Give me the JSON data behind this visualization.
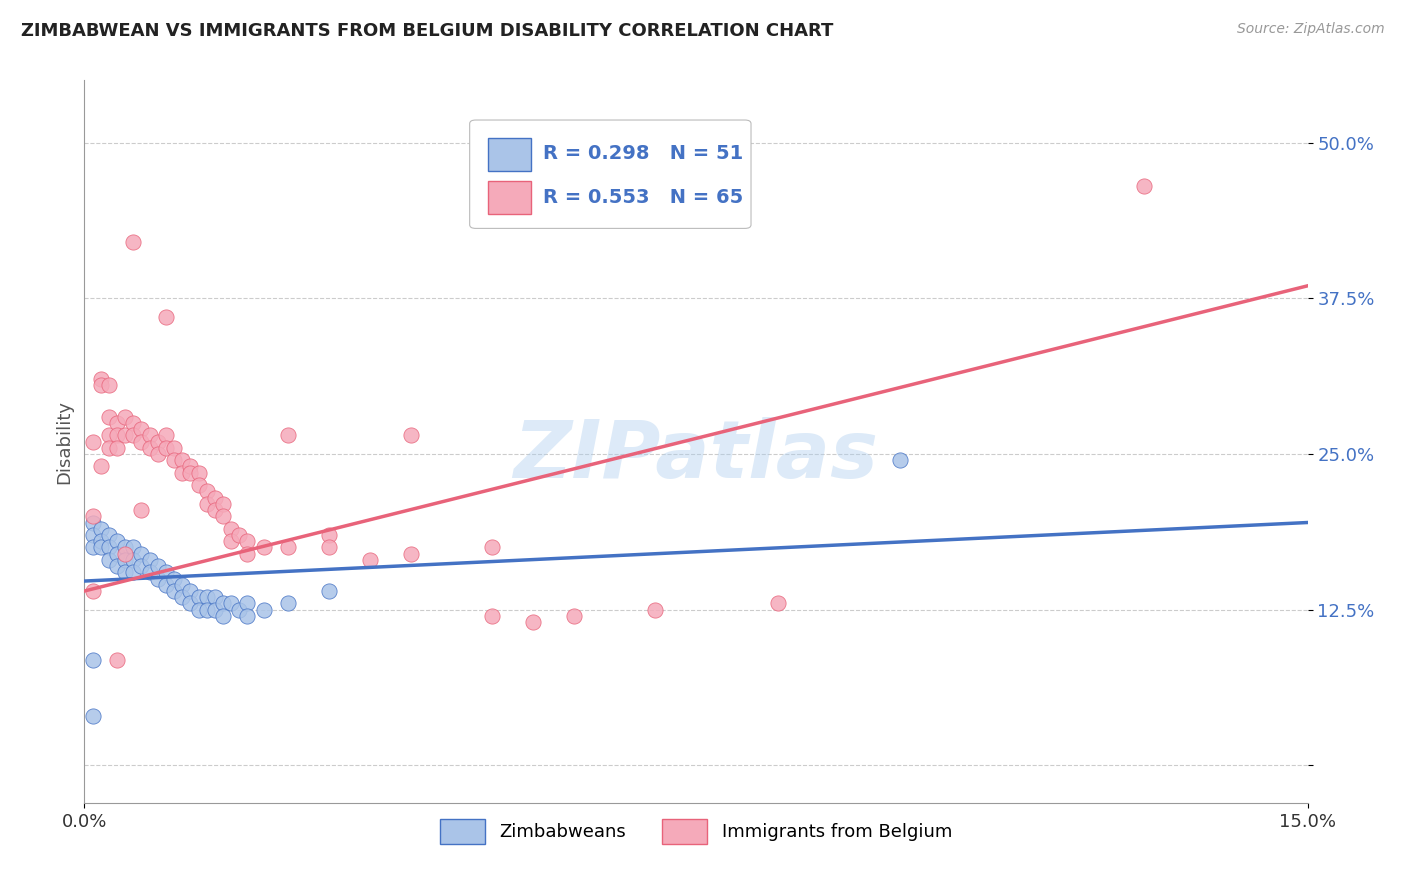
{
  "title": "ZIMBABWEAN VS IMMIGRANTS FROM BELGIUM DISABILITY CORRELATION CHART",
  "source": "Source: ZipAtlas.com",
  "ylabel": "Disability",
  "xlim": [
    0,
    0.15
  ],
  "ylim": [
    -0.03,
    0.55
  ],
  "yticks": [
    0.0,
    0.125,
    0.25,
    0.375,
    0.5
  ],
  "ytick_labels": [
    "",
    "12.5%",
    "25.0%",
    "37.5%",
    "50.0%"
  ],
  "xtick_positions": [
    0.0,
    0.15
  ],
  "xtick_labels": [
    "0.0%",
    "15.0%"
  ],
  "blue_color": "#aac4e8",
  "pink_color": "#f5aaba",
  "blue_line_color": "#4472c4",
  "pink_line_color": "#e8637a",
  "legend_text_color": "#4472c4",
  "R_blue": 0.298,
  "N_blue": 51,
  "R_pink": 0.553,
  "N_pink": 65,
  "legend1": "Zimbabweans",
  "legend2": "Immigrants from Belgium",
  "watermark": "ZIPatlas",
  "blue_scatter": [
    [
      0.001,
      0.195
    ],
    [
      0.001,
      0.185
    ],
    [
      0.001,
      0.175
    ],
    [
      0.001,
      0.04
    ],
    [
      0.002,
      0.19
    ],
    [
      0.002,
      0.18
    ],
    [
      0.002,
      0.175
    ],
    [
      0.003,
      0.185
    ],
    [
      0.003,
      0.175
    ],
    [
      0.003,
      0.165
    ],
    [
      0.004,
      0.18
    ],
    [
      0.004,
      0.17
    ],
    [
      0.004,
      0.16
    ],
    [
      0.005,
      0.175
    ],
    [
      0.005,
      0.165
    ],
    [
      0.005,
      0.155
    ],
    [
      0.006,
      0.175
    ],
    [
      0.006,
      0.165
    ],
    [
      0.006,
      0.155
    ],
    [
      0.007,
      0.17
    ],
    [
      0.007,
      0.16
    ],
    [
      0.008,
      0.165
    ],
    [
      0.008,
      0.155
    ],
    [
      0.009,
      0.16
    ],
    [
      0.009,
      0.15
    ],
    [
      0.01,
      0.155
    ],
    [
      0.01,
      0.145
    ],
    [
      0.011,
      0.15
    ],
    [
      0.011,
      0.14
    ],
    [
      0.012,
      0.145
    ],
    [
      0.012,
      0.135
    ],
    [
      0.013,
      0.14
    ],
    [
      0.013,
      0.13
    ],
    [
      0.014,
      0.135
    ],
    [
      0.014,
      0.125
    ],
    [
      0.015,
      0.135
    ],
    [
      0.015,
      0.125
    ],
    [
      0.016,
      0.135
    ],
    [
      0.016,
      0.125
    ],
    [
      0.017,
      0.13
    ],
    [
      0.017,
      0.12
    ],
    [
      0.018,
      0.13
    ],
    [
      0.019,
      0.125
    ],
    [
      0.02,
      0.13
    ],
    [
      0.02,
      0.12
    ],
    [
      0.022,
      0.125
    ],
    [
      0.025,
      0.13
    ],
    [
      0.03,
      0.14
    ],
    [
      0.1,
      0.245
    ],
    [
      0.001,
      0.085
    ]
  ],
  "pink_scatter": [
    [
      0.001,
      0.26
    ],
    [
      0.001,
      0.14
    ],
    [
      0.001,
      0.2
    ],
    [
      0.002,
      0.31
    ],
    [
      0.002,
      0.305
    ],
    [
      0.002,
      0.24
    ],
    [
      0.003,
      0.28
    ],
    [
      0.003,
      0.265
    ],
    [
      0.003,
      0.255
    ],
    [
      0.003,
      0.305
    ],
    [
      0.004,
      0.275
    ],
    [
      0.004,
      0.265
    ],
    [
      0.004,
      0.255
    ],
    [
      0.004,
      0.085
    ],
    [
      0.005,
      0.28
    ],
    [
      0.005,
      0.265
    ],
    [
      0.005,
      0.17
    ],
    [
      0.006,
      0.275
    ],
    [
      0.006,
      0.265
    ],
    [
      0.006,
      0.42
    ],
    [
      0.007,
      0.27
    ],
    [
      0.007,
      0.26
    ],
    [
      0.007,
      0.205
    ],
    [
      0.008,
      0.265
    ],
    [
      0.008,
      0.255
    ],
    [
      0.009,
      0.26
    ],
    [
      0.009,
      0.25
    ],
    [
      0.01,
      0.265
    ],
    [
      0.01,
      0.255
    ],
    [
      0.01,
      0.36
    ],
    [
      0.011,
      0.255
    ],
    [
      0.011,
      0.245
    ],
    [
      0.012,
      0.245
    ],
    [
      0.012,
      0.235
    ],
    [
      0.013,
      0.24
    ],
    [
      0.013,
      0.235
    ],
    [
      0.014,
      0.235
    ],
    [
      0.014,
      0.225
    ],
    [
      0.015,
      0.22
    ],
    [
      0.015,
      0.21
    ],
    [
      0.016,
      0.215
    ],
    [
      0.016,
      0.205
    ],
    [
      0.017,
      0.21
    ],
    [
      0.017,
      0.2
    ],
    [
      0.018,
      0.19
    ],
    [
      0.018,
      0.18
    ],
    [
      0.019,
      0.185
    ],
    [
      0.02,
      0.18
    ],
    [
      0.02,
      0.17
    ],
    [
      0.022,
      0.175
    ],
    [
      0.025,
      0.175
    ],
    [
      0.025,
      0.265
    ],
    [
      0.03,
      0.185
    ],
    [
      0.03,
      0.175
    ],
    [
      0.035,
      0.165
    ],
    [
      0.04,
      0.17
    ],
    [
      0.04,
      0.265
    ],
    [
      0.05,
      0.175
    ],
    [
      0.05,
      0.12
    ],
    [
      0.055,
      0.115
    ],
    [
      0.06,
      0.12
    ],
    [
      0.07,
      0.125
    ],
    [
      0.085,
      0.13
    ],
    [
      0.13,
      0.465
    ]
  ],
  "blue_line_x": [
    0.0,
    0.15
  ],
  "blue_line_y": [
    0.148,
    0.195
  ],
  "pink_line_x": [
    0.0,
    0.15
  ],
  "pink_line_y": [
    0.14,
    0.385
  ],
  "grid_color": "#cccccc",
  "background_color": "#ffffff"
}
